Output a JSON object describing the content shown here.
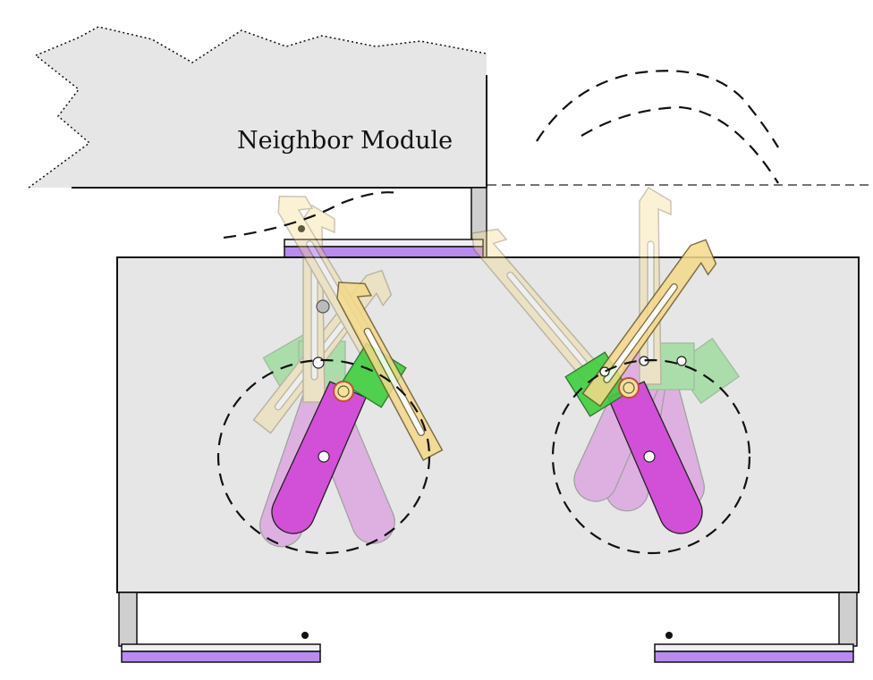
{
  "neighbor_module": {
    "label": "Neighbor Module"
  },
  "colors": {
    "background": "#ffffff",
    "module_body": "#e6e6e6",
    "outline": "#111111",
    "pad": "#b98af0",
    "leg": "#cfcfcf",
    "hook_arm": "#f5d98a",
    "cam_link": "#d24fd8",
    "slider_block": "#3ecf3e",
    "pin_ring": "#c94a3a",
    "trajectory": "#111111"
  },
  "icons": [
    "hook-arm-icon",
    "cam-link-icon",
    "slider-block-icon",
    "pivot-pin-icon",
    "trajectory-arc-icon",
    "contact-pad-icon"
  ]
}
